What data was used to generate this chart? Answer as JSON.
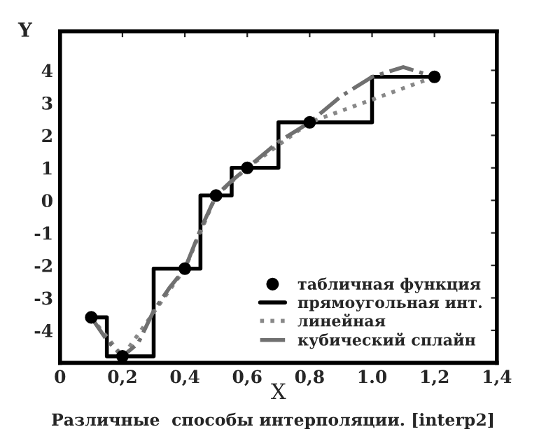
{
  "chart_data": {
    "type": "line",
    "xlabel": "X",
    "ylabel": "Y",
    "annotations": [
      "Различные  способы интерполяции. [interp2]"
    ],
    "xlim": [
      0,
      1.4
    ],
    "ylim": [
      -5,
      5.2
    ],
    "xticks": [
      0,
      {
        "value": 0.2,
        "label": "0,2"
      },
      {
        "value": 0.4,
        "label": "0,4"
      },
      {
        "value": 0.6,
        "label": "0,6"
      },
      {
        "value": 0.8,
        "label": "0,8"
      },
      {
        "value": 1.0,
        "label": "1.0"
      },
      {
        "value": 1.2,
        "label": "1,2"
      },
      {
        "value": 1.4,
        "label": "1,4"
      }
    ],
    "yticks": [
      -4,
      -3,
      -2,
      -1,
      0,
      1,
      2,
      3,
      4
    ],
    "grid": false,
    "legend": "bottom right",
    "series": [
      {
        "name": "табличная функция",
        "type": "scatter",
        "marker": "circle",
        "color": "#000000",
        "x": [
          0.1,
          0.2,
          0.4,
          0.5,
          0.6,
          0.8,
          1.2
        ],
        "values": [
          -3.6,
          -4.8,
          -2.1,
          0.15,
          1.0,
          2.4,
          3.8
        ]
      },
      {
        "name": "прямоугольная инт.",
        "type": "step",
        "line_style": "solid",
        "color": "#000000",
        "x": [
          0.1,
          0.2,
          0.4,
          0.5,
          0.6,
          0.8,
          1.2
        ],
        "values": [
          -3.6,
          -4.8,
          -2.1,
          0.15,
          1.0,
          2.4,
          3.8
        ]
      },
      {
        "name": "линейная",
        "line_style": "dotted",
        "color": "#888888",
        "x": [
          0.1,
          0.2,
          0.4,
          0.5,
          0.6,
          0.8,
          1.2
        ],
        "values": [
          -3.6,
          -4.8,
          -2.1,
          0.15,
          1.0,
          2.4,
          3.8
        ]
      },
      {
        "name": "кубический сплайн",
        "line_style": "dashdot",
        "color": "#707070",
        "x": [
          0.1,
          0.15,
          0.2,
          0.25,
          0.3,
          0.35,
          0.4,
          0.45,
          0.5,
          0.55,
          0.6,
          0.7,
          0.8,
          0.9,
          1.0,
          1.1,
          1.2
        ],
        "values": [
          -3.6,
          -4.3,
          -4.8,
          -4.4,
          -3.4,
          -2.7,
          -2.1,
          -0.9,
          0.15,
          0.6,
          1.0,
          1.8,
          2.4,
          3.2,
          3.8,
          4.1,
          3.8
        ]
      }
    ]
  }
}
